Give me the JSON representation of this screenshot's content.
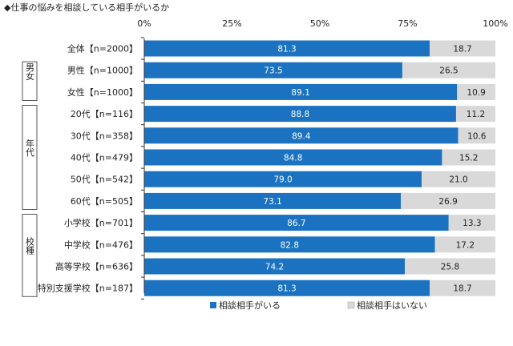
{
  "chart_data": {
    "type": "bar",
    "orientation": "horizontal",
    "stacked": true,
    "title": "◆仕事の悩みを相談している相手がいるか",
    "x_ticks": [
      "0%",
      "25%",
      "50%",
      "75%",
      "100%"
    ],
    "xlim": [
      0,
      100
    ],
    "categories": [
      "全体【n=2000】",
      "男性【n=1000】",
      "女性【n=1000】",
      "20代【n=116】",
      "30代【n=358】",
      "40代【n=479】",
      "50代【n=542】",
      "60代【n=505】",
      "小学校【n=701】",
      "中学校【n=476】",
      "高等学校【n=636】",
      "特別支援学校【n=187】"
    ],
    "groups": [
      {
        "label": "男女",
        "start": 1,
        "end": 2
      },
      {
        "label": "年代",
        "start": 3,
        "end": 7
      },
      {
        "label": "校種",
        "start": 8,
        "end": 11
      }
    ],
    "series": [
      {
        "name": "相談相手がいる",
        "color": "#1a72c0",
        "values": [
          81.3,
          73.5,
          89.1,
          88.8,
          89.4,
          84.8,
          79.0,
          73.1,
          86.7,
          82.8,
          74.2,
          81.3
        ]
      },
      {
        "name": "相談相手はいない",
        "color": "#d9d9d9",
        "values": [
          18.7,
          26.5,
          10.9,
          11.2,
          10.6,
          15.2,
          21.0,
          26.9,
          13.3,
          17.2,
          25.8,
          18.7
        ]
      }
    ],
    "legend_position": "bottom",
    "grid": false
  }
}
